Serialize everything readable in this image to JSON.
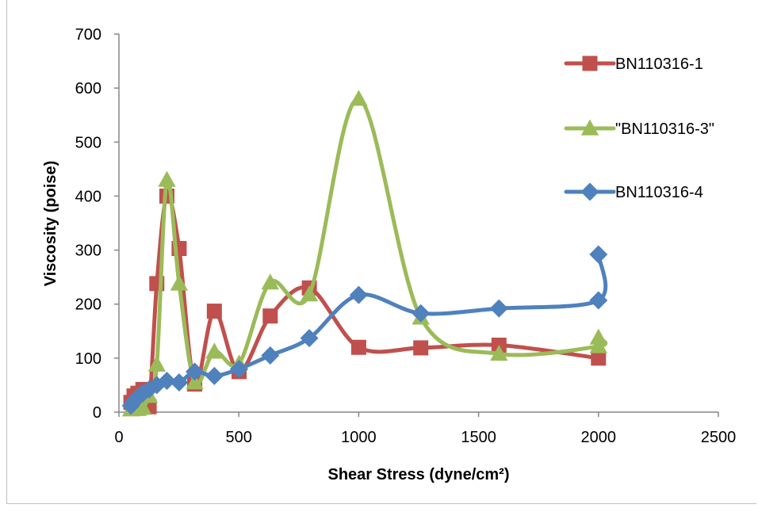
{
  "chart_data": {
    "type": "scatter",
    "title": "",
    "xlabel": "Shear Stress (dyne/cm²)",
    "ylabel": "Viscosity (poise)",
    "xlim": [
      0,
      2500
    ],
    "ylim": [
      0,
      700
    ],
    "xticks": [
      0,
      500,
      1000,
      1500,
      2000,
      2500
    ],
    "yticks": [
      0,
      100,
      200,
      300,
      400,
      500,
      600,
      700
    ],
    "grid": false,
    "legend_position": "right",
    "smooth_lines": true,
    "series": [
      {
        "name": "BN110316-1",
        "color": "#c0504d",
        "marker": "square",
        "x": [
          50,
          63,
          79,
          100,
          126,
          158,
          200,
          251,
          316,
          398,
          501,
          631,
          794,
          1000,
          1259,
          1585,
          2000
        ],
        "y": [
          18,
          30,
          35,
          42,
          10,
          238,
          400,
          303,
          52,
          187,
          75,
          178,
          230,
          120,
          119,
          124,
          100
        ]
      },
      {
        "name": "\"BN110316-3\"",
        "color": "#9bbb59",
        "marker": "triangle",
        "x": [
          50,
          63,
          79,
          100,
          126,
          158,
          200,
          251,
          316,
          398,
          501,
          631,
          794,
          1000,
          1259,
          1585,
          2000,
          2000
        ],
        "y": [
          5,
          6,
          6,
          8,
          30,
          88,
          430,
          238,
          55,
          112,
          90,
          240,
          218,
          580,
          175,
          108,
          122,
          138
        ]
      },
      {
        "name": "BN110316-4",
        "color": "#4f81bd",
        "marker": "diamond",
        "x": [
          50,
          63,
          79,
          100,
          126,
          158,
          200,
          251,
          316,
          398,
          501,
          631,
          794,
          1000,
          1259,
          1585,
          2000,
          2000
        ],
        "y": [
          12,
          20,
          28,
          35,
          42,
          50,
          58,
          55,
          75,
          67,
          80,
          105,
          137,
          217,
          183,
          192,
          207,
          292
        ]
      }
    ]
  }
}
